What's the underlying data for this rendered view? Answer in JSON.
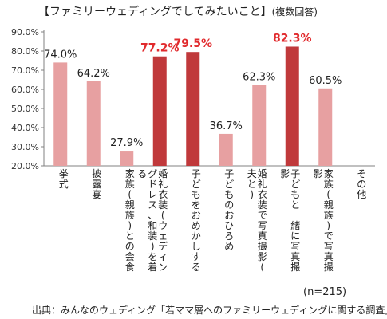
{
  "chart_data": {
    "type": "bar",
    "title": "【ファミリーウェディングでしてみたいこと】",
    "subtitle": "(複数回答)",
    "categories": [
      "挙式",
      "披露宴",
      "家族(親族)との会食",
      "婚礼衣装(ウェディングドレス、和装)を着る",
      "子どもをおめかしする",
      "子どものおひろめ",
      "婚礼衣装で写真撮影(夫と)",
      "子どもと一緒に写真撮影",
      "家族(親族)で写真撮影",
      "その他"
    ],
    "values": [
      74.0,
      64.2,
      27.9,
      77.2,
      79.5,
      36.7,
      62.3,
      82.3,
      60.5,
      null
    ],
    "value_labels": [
      "74.0%",
      "64.2%",
      "27.9%",
      "77.2%",
      "79.5%",
      "36.7%",
      "62.3%",
      "82.3%",
      "60.5%",
      ""
    ],
    "highlighted": [
      false,
      false,
      false,
      true,
      true,
      false,
      false,
      true,
      false,
      false
    ],
    "y_ticks": [
      "20.0%",
      "30.0%",
      "40.0%",
      "50.0%",
      "60.0%",
      "70.0%",
      "80.0%",
      "90.0%"
    ],
    "ylim": [
      20,
      90
    ],
    "colors": {
      "bar": "#e7a0a1",
      "bar_highlight": "#c0393b",
      "label_highlight": "#e12a2d",
      "label": "#222222",
      "grid": "#d9d9d9",
      "axis": "#808080"
    },
    "grid": false,
    "legend": "none"
  },
  "note_n": "(n=215)",
  "source": "出典：みんなのウェディング「若ママ層へのファミリーウェディングに関する調査」"
}
